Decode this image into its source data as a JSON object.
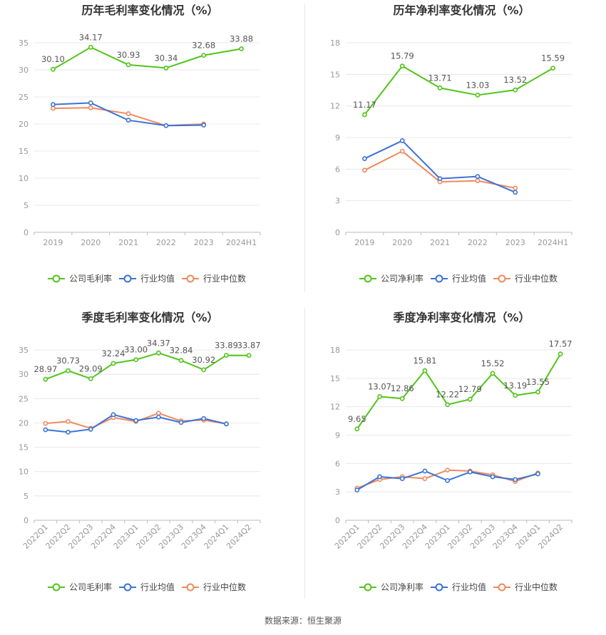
{
  "source": "数据来源：恒生聚源",
  "colors": {
    "company": "#52c41a",
    "avg": "#3b73d6",
    "median": "#f08a5d",
    "grid": "#e8e8e8",
    "axis": "#999999",
    "label": "#555555",
    "title": "#333333"
  },
  "chart_data": [
    {
      "type": "line",
      "title": "历年毛利率变化情况（%）",
      "categories": [
        "2019",
        "2020",
        "2021",
        "2022",
        "2023",
        "2024H1"
      ],
      "ylim": [
        0,
        35
      ],
      "yticks": [
        0,
        5,
        10,
        15,
        20,
        25,
        30,
        35
      ],
      "rotate_x": false,
      "grid": true,
      "legend_position": "bottom",
      "series": [
        {
          "name": "公司毛利率",
          "color": "#52c41a",
          "labels": true,
          "values": [
            30.1,
            34.17,
            30.93,
            30.34,
            32.68,
            33.88
          ]
        },
        {
          "name": "行业均值",
          "color": "#3b73d6",
          "labels": false,
          "values": [
            23.6,
            23.9,
            20.7,
            19.7,
            19.8,
            null
          ]
        },
        {
          "name": "行业中位数",
          "color": "#f08a5d",
          "labels": false,
          "values": [
            22.9,
            23.0,
            21.9,
            19.7,
            20.0,
            null
          ]
        }
      ]
    },
    {
      "type": "line",
      "title": "历年净利率变化情况（%）",
      "categories": [
        "2019",
        "2020",
        "2021",
        "2022",
        "2023",
        "2024H1"
      ],
      "ylim": [
        0,
        18
      ],
      "yticks": [
        0,
        3,
        6,
        9,
        12,
        15,
        18
      ],
      "rotate_x": false,
      "grid": true,
      "legend_position": "bottom",
      "series": [
        {
          "name": "公司净利率",
          "color": "#52c41a",
          "labels": true,
          "values": [
            11.17,
            15.79,
            13.71,
            13.03,
            13.52,
            15.59
          ]
        },
        {
          "name": "行业均值",
          "color": "#3b73d6",
          "labels": false,
          "values": [
            7.0,
            8.7,
            5.1,
            5.3,
            3.8,
            null
          ]
        },
        {
          "name": "行业中位数",
          "color": "#f08a5d",
          "labels": false,
          "values": [
            5.9,
            7.7,
            4.8,
            4.9,
            4.2,
            null
          ]
        }
      ]
    },
    {
      "type": "line",
      "title": "季度毛利率变化情况（%）",
      "categories": [
        "2022Q1",
        "2022Q2",
        "2022Q3",
        "2022Q4",
        "2023Q1",
        "2023Q2",
        "2023Q3",
        "2023Q4",
        "2024Q1",
        "2024Q2"
      ],
      "ylim": [
        0,
        35
      ],
      "yticks": [
        0,
        5,
        10,
        15,
        20,
        25,
        30,
        35
      ],
      "rotate_x": true,
      "grid": true,
      "legend_position": "bottom",
      "series": [
        {
          "name": "公司毛利率",
          "color": "#52c41a",
          "labels": true,
          "values": [
            28.97,
            30.73,
            29.09,
            32.24,
            33.0,
            34.37,
            32.84,
            30.92,
            33.89,
            33.87
          ]
        },
        {
          "name": "行业均值",
          "color": "#3b73d6",
          "labels": false,
          "values": [
            18.6,
            18.1,
            18.7,
            21.7,
            20.5,
            21.2,
            20.1,
            20.9,
            19.8,
            null
          ]
        },
        {
          "name": "行业中位数",
          "color": "#f08a5d",
          "labels": false,
          "values": [
            19.9,
            20.3,
            18.9,
            21.1,
            20.3,
            22.0,
            20.4,
            20.6,
            19.8,
            null
          ]
        }
      ]
    },
    {
      "type": "line",
      "title": "季度净利率变化情况（%）",
      "categories": [
        "2022Q1",
        "2022Q2",
        "2022Q3",
        "2022Q4",
        "2023Q1",
        "2023Q2",
        "2023Q3",
        "2023Q4",
        "2024Q1",
        "2024Q2"
      ],
      "ylim": [
        0,
        18
      ],
      "yticks": [
        0,
        3,
        6,
        9,
        12,
        15,
        18
      ],
      "rotate_x": true,
      "grid": true,
      "legend_position": "bottom",
      "series": [
        {
          "name": "公司净利率",
          "color": "#52c41a",
          "labels": true,
          "values": [
            9.65,
            13.07,
            12.86,
            15.81,
            12.22,
            12.79,
            15.52,
            13.19,
            13.55,
            17.57
          ]
        },
        {
          "name": "行业均值",
          "color": "#3b73d6",
          "labels": false,
          "values": [
            3.2,
            4.6,
            4.4,
            5.2,
            4.2,
            5.1,
            4.6,
            4.3,
            4.9,
            null
          ]
        },
        {
          "name": "行业中位数",
          "color": "#f08a5d",
          "labels": false,
          "values": [
            3.4,
            4.3,
            4.6,
            4.4,
            5.3,
            5.2,
            4.8,
            4.1,
            5.0,
            null
          ]
        }
      ]
    }
  ]
}
